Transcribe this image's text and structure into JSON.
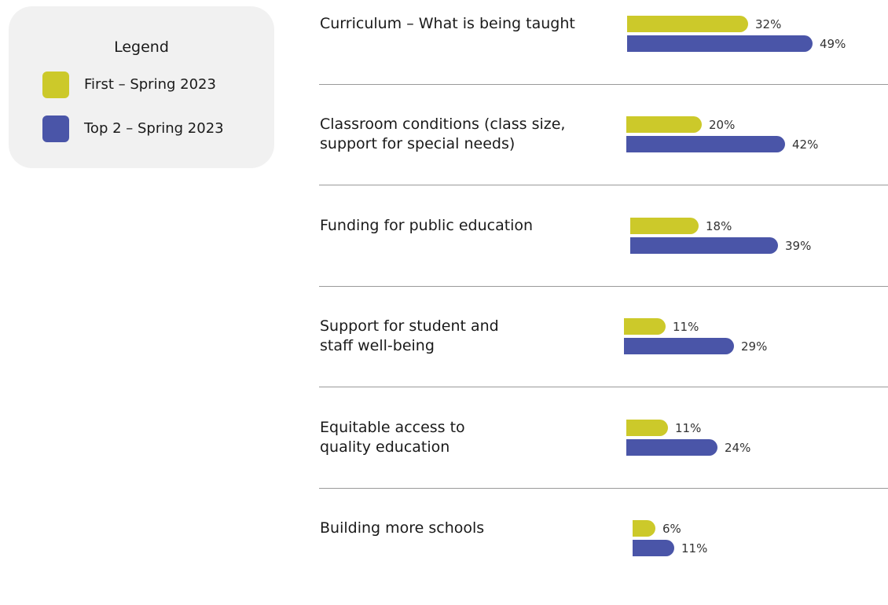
{
  "legend": {
    "title": "Legend",
    "items": [
      {
        "label": "First – Spring 2023",
        "color": "#ccc92a"
      },
      {
        "label": "Top 2 – Spring 2023",
        "color": "#4a55a8"
      }
    ]
  },
  "chart_data": {
    "type": "bar",
    "orientation": "horizontal",
    "title": "",
    "xlabel": "",
    "ylabel": "",
    "grid": false,
    "legend_position": "top-left",
    "unit": "%",
    "categories": [
      "Curriculum – What is being taught",
      "Classroom conditions (class size,\nsupport for special needs)",
      "Funding for public education",
      "Support for student and\nstaff well-being",
      "Equitable access to\nquality education",
      "Building more schools"
    ],
    "series": [
      {
        "name": "First – Spring 2023",
        "color": "#ccc92a",
        "values": [
          32,
          20,
          18,
          11,
          11,
          6
        ],
        "labels": [
          "32%",
          "20%",
          "18%",
          "11%",
          "11%",
          "6%"
        ]
      },
      {
        "name": "Top 2 – Spring 2023",
        "color": "#4a55a8",
        "values": [
          49,
          42,
          39,
          29,
          24,
          11
        ],
        "labels": [
          "49%",
          "42%",
          "39%",
          "29%",
          "24%",
          "11%"
        ]
      }
    ]
  }
}
